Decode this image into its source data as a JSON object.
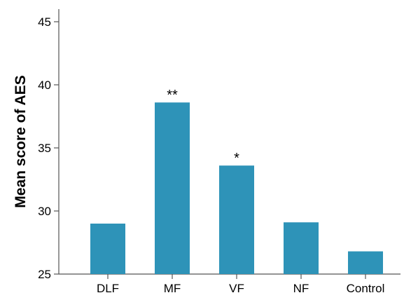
{
  "chart_data": {
    "type": "bar",
    "categories": [
      "DLF",
      "MF",
      "VF",
      "NF",
      "Control"
    ],
    "values": [
      29.0,
      38.6,
      33.6,
      29.1,
      26.8
    ],
    "annotations": [
      "",
      "**",
      "*",
      "",
      ""
    ],
    "xlabel": "",
    "ylabel": "Mean score of AES",
    "ylim": [
      25,
      46
    ],
    "yticks": [
      25,
      30,
      35,
      40,
      45
    ],
    "grid": false,
    "colors": {
      "bar": "#2e93b8",
      "axis": "#555555"
    }
  }
}
